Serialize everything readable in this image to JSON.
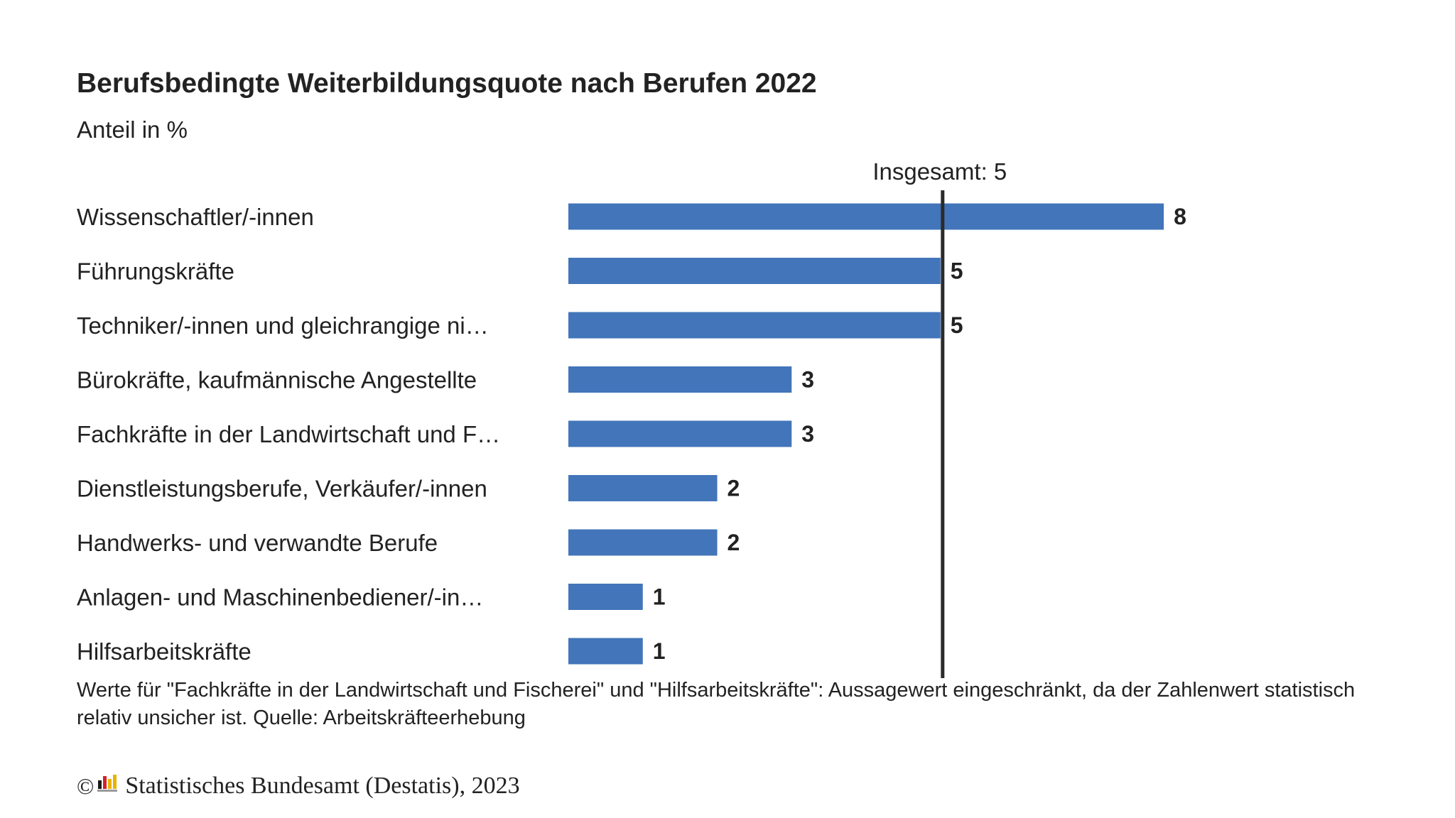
{
  "title": "Berufsbedingte Weiterbildungsquote nach Berufen 2022",
  "subtitle": "Anteil in %",
  "footnote": "Werte für \"Fachkräfte in der Landwirtschaft und Fischerei\" und \"Hilfsarbeitskräfte\": Aussagewert eingeschränkt, da der Zahlenwert statistisch relativ unsicher ist. Quelle: Arbeitskräfteerhebung",
  "copyright": {
    "symbol": "©",
    "text": "Statistisches Bundesamt (Destatis), 2023",
    "logo": "destatis-logo"
  },
  "colors": {
    "bar": "#4275b9",
    "reference_line": "#2b2b2b",
    "text": "#222222"
  },
  "chart_data": {
    "type": "bar",
    "orientation": "horizontal",
    "title": "Berufsbedingte Weiterbildungsquote nach Berufen 2022",
    "subtitle": "Anteil in %",
    "categories": [
      "Wissenschaftler/-innen",
      "Führungskräfte",
      "Techniker/-innen und gleichrangige ni…",
      "Bürokräfte, kaufmännische Angestellte",
      "Fachkräfte in der Landwirtschaft und F…",
      "Dienstleistungsberufe, Verkäufer/-innen",
      "Handwerks- und verwandte Berufe",
      "Anlagen- und Maschinenbediener/-in…",
      "Hilfsarbeitskräfte"
    ],
    "display_values": [
      8,
      5,
      5,
      3,
      3,
      2,
      2,
      1,
      1
    ],
    "values": [
      8.0,
      5.0,
      5.0,
      3.0,
      3.0,
      2.0,
      2.0,
      1.0,
      1.0
    ],
    "xlim": [
      0,
      10.5
    ],
    "reference_line": {
      "label": "Insgesamt: 5",
      "value": 5
    },
    "grid": false,
    "legend": "none"
  }
}
